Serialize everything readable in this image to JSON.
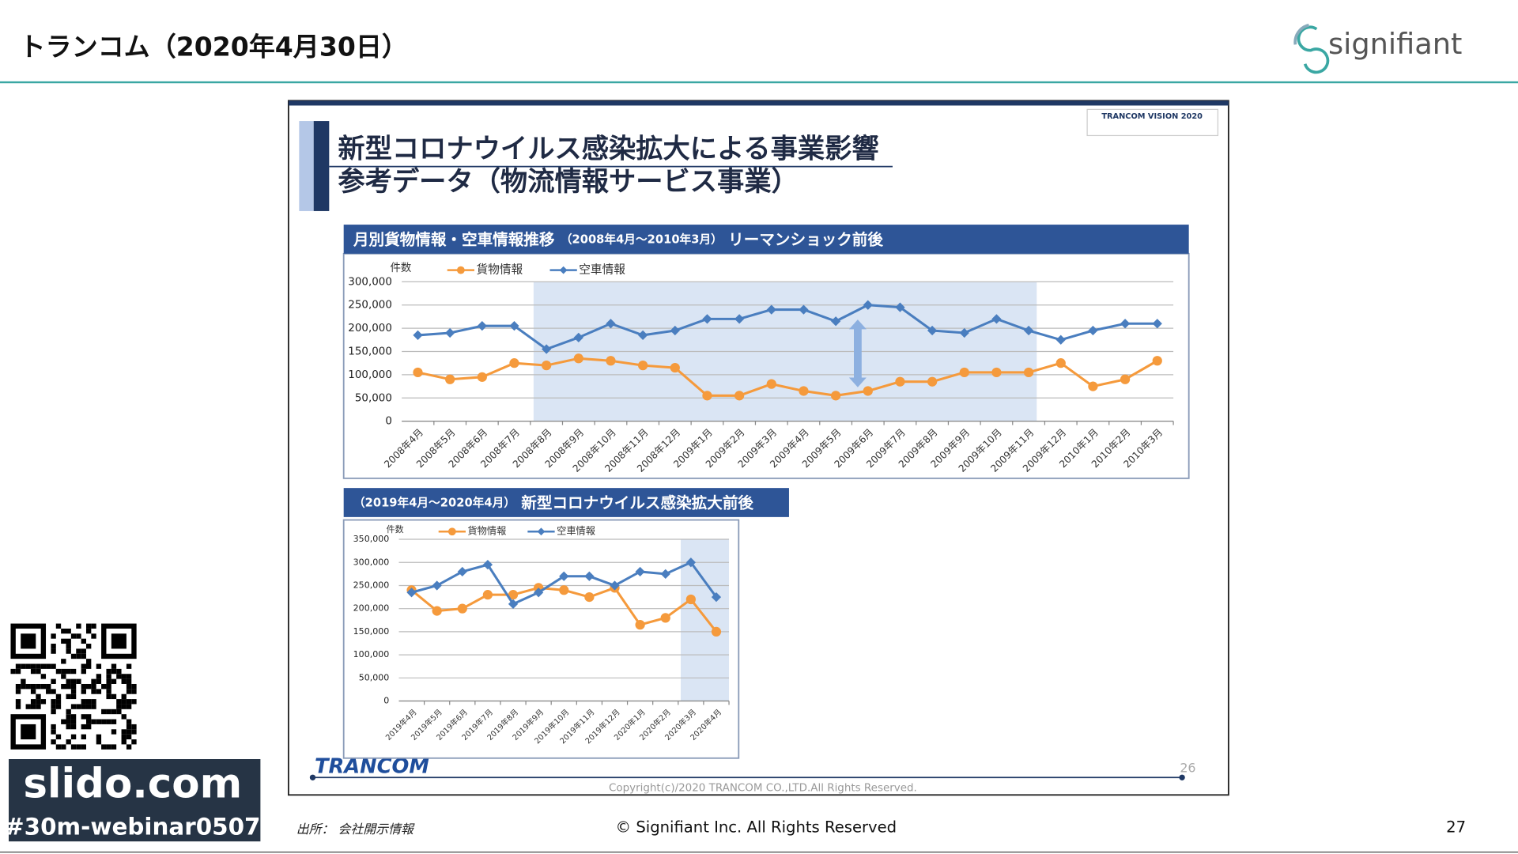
{
  "header": {
    "title": "トランコム（2020年4月30日）",
    "logo": "signifiant"
  },
  "slide": {
    "title_line1": "新型コロナウイルス感染拡大による事業影響",
    "title_line2": "参考データ（物流情報サービス事業）",
    "badge": "TRANCOM VISION 2020",
    "logo": "TRANCOM",
    "page": 26,
    "copyright": "Copyright(c)/2020 TRANCOM CO.,LTD.All Rights Reserved."
  },
  "chart_data": [
    {
      "type": "line",
      "title": "月別貨物情報・空車情報推移",
      "subtitle": "（2008年4月～2010年3月）",
      "annotation": "リーマンショック前後",
      "y_label": "件数",
      "categories": [
        "2008年4月",
        "2008年5月",
        "2008年6月",
        "2008年7月",
        "2008年8月",
        "2008年9月",
        "2008年10月",
        "2008年11月",
        "2008年12月",
        "2009年1月",
        "2009年2月",
        "2009年3月",
        "2009年4月",
        "2009年5月",
        "2009年6月",
        "2009年7月",
        "2009年8月",
        "2009年9月",
        "2009年10月",
        "2009年11月",
        "2009年12月",
        "2010年1月",
        "2010年2月",
        "2010年3月"
      ],
      "series": [
        {
          "name": "貨物情報",
          "color": "#f59a3c",
          "marker": "circle",
          "values": [
            105000,
            90000,
            95000,
            125000,
            120000,
            135000,
            130000,
            120000,
            115000,
            55000,
            55000,
            80000,
            65000,
            55000,
            65000,
            85000,
            85000,
            105000,
            105000,
            105000,
            125000,
            75000,
            90000,
            130000
          ]
        },
        {
          "name": "空車情報",
          "color": "#4a7ebf",
          "marker": "diamond",
          "values": [
            185000,
            190000,
            205000,
            205000,
            155000,
            180000,
            210000,
            185000,
            195000,
            220000,
            220000,
            240000,
            240000,
            215000,
            250000,
            245000,
            195000,
            190000,
            220000,
            195000,
            175000,
            195000,
            210000,
            210000
          ]
        }
      ],
      "ylim": [
        0,
        300000
      ],
      "yticks": [
        0,
        {
          "value": 50000,
          "label": "50,000"
        },
        {
          "value": 100000,
          "label": "100,000"
        },
        {
          "value": 150000,
          "label": "150,000"
        },
        {
          "value": 200000,
          "label": "200,000"
        },
        {
          "value": 250000,
          "label": "250,000"
        },
        {
          "value": 300000,
          "label": "300,000"
        }
      ],
      "grid": true
    },
    {
      "type": "line",
      "title": "新型コロナウイルス感染拡大前後",
      "subtitle": "（2019年4月～2020年4月）",
      "y_label": "件数",
      "categories": [
        "2019年4月",
        "2019年5月",
        "2019年6月",
        "2019年7月",
        "2019年8月",
        "2019年9月",
        "2019年10月",
        "2019年11月",
        "2019年12月",
        "2020年1月",
        "2020年2月",
        "2020年3月",
        "2020年4月"
      ],
      "series": [
        {
          "name": "貨物情報",
          "color": "#f59a3c",
          "marker": "circle",
          "values": [
            240000,
            195000,
            200000,
            230000,
            230000,
            245000,
            240000,
            225000,
            245000,
            165000,
            180000,
            220000,
            150000
          ]
        },
        {
          "name": "空車情報",
          "color": "#4a7ebf",
          "marker": "diamond",
          "values": [
            235000,
            250000,
            280000,
            295000,
            210000,
            235000,
            270000,
            270000,
            250000,
            280000,
            275000,
            300000,
            225000
          ]
        }
      ],
      "ylim": [
        0,
        350000
      ],
      "yticks": [
        0,
        {
          "value": 50000,
          "label": "50,000"
        },
        {
          "value": 100000,
          "label": "100,000"
        },
        {
          "value": 150000,
          "label": "150,000"
        },
        {
          "value": 200000,
          "label": "200,000"
        },
        {
          "value": 250000,
          "label": "250,000"
        },
        {
          "value": 300000,
          "label": "300,000"
        },
        {
          "value": 350000,
          "label": "350,000"
        }
      ],
      "grid": true
    }
  ],
  "footer": {
    "source": "出所： 会社開示情報",
    "copyright": "© Signifiant Inc. All Rights Reserved",
    "page": 27
  },
  "slido": {
    "url": "slido.com",
    "tag": "#30m-webinar0507"
  }
}
